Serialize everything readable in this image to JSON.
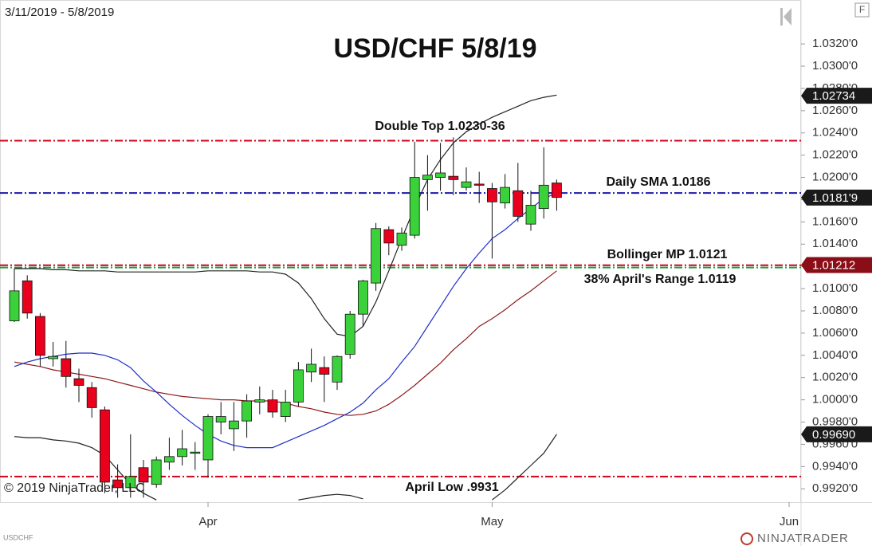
{
  "chart_data": {
    "type": "candlestick",
    "title": "USD/CHF 5/8/19",
    "date_range": "3/11/2019 - 5/8/2019",
    "copyright": "© 2019 NinjaTrader, LLC",
    "instrument": "USDCHF",
    "brand": "NINJATRADER",
    "button": "F",
    "up_color": "#3ad13a",
    "down_color": "#e8001c",
    "ylim": [
      0.9908,
      1.0338
    ],
    "yticks": [
      {
        "value": 0.992,
        "label": "0.9920'0"
      },
      {
        "value": 0.994,
        "label": "0.9940'0"
      },
      {
        "value": 0.996,
        "label": "0.9960'0"
      },
      {
        "value": 0.998,
        "label": "0.9980'0"
      },
      {
        "value": 1.0,
        "label": "1.0000'0"
      },
      {
        "value": 1.002,
        "label": "1.0020'0"
      },
      {
        "value": 1.004,
        "label": "1.0040'0"
      },
      {
        "value": 1.006,
        "label": "1.0060'0"
      },
      {
        "value": 1.008,
        "label": "1.0080'0"
      },
      {
        "value": 1.01,
        "label": "1.0100'0"
      },
      {
        "value": 1.012,
        "label": "1.0120'0"
      },
      {
        "value": 1.014,
        "label": "1.0140'0"
      },
      {
        "value": 1.016,
        "label": "1.0160'0"
      },
      {
        "value": 1.018,
        "label": "1.0180'0"
      },
      {
        "value": 1.02,
        "label": "1.0200'0"
      },
      {
        "value": 1.022,
        "label": "1.0220'0"
      },
      {
        "value": 1.024,
        "label": "1.0240'0"
      },
      {
        "value": 1.026,
        "label": "1.0260'0"
      },
      {
        "value": 1.028,
        "label": "1.0280'0"
      },
      {
        "value": 1.03,
        "label": "1.0300'0"
      },
      {
        "value": 1.032,
        "label": "1.0320'0"
      }
    ],
    "xticks": [
      {
        "value": 15,
        "label": "Apr"
      },
      {
        "value": 37,
        "label": "May"
      },
      {
        "value": 60,
        "label": "Jun"
      }
    ],
    "open": [
      1.0071,
      1.0107,
      1.0075,
      1.0037,
      1.0037,
      1.0019,
      1.0011,
      0.9991,
      0.9928,
      0.9921,
      0.9939,
      0.9924,
      0.9944,
      0.9949,
      0.9952,
      0.9946,
      0.998,
      0.9974,
      0.9981,
      0.9998,
      1.0,
      0.9985,
      0.9998,
      1.0025,
      1.0029,
      1.0016,
      1.0041,
      1.0077,
      1.0105,
      1.0153,
      1.0139,
      1.0148,
      1.0198,
      1.02,
      1.0201,
      1.0191,
      1.0194,
      1.019,
      1.0177,
      1.0188,
      1.0158,
      1.0172,
      1.0195
    ],
    "high": [
      1.0118,
      1.0112,
      1.0078,
      1.0052,
      1.0053,
      1.0028,
      1.0016,
      0.9994,
      0.9942,
      0.9969,
      0.9946,
      0.9949,
      0.9966,
      0.9973,
      0.9962,
      0.9987,
      0.9998,
      0.9998,
      1.0005,
      1.0012,
      1.0009,
      1.0009,
      1.0034,
      1.0046,
      1.0039,
      1.004,
      1.008,
      1.0108,
      1.0159,
      1.0156,
      1.0155,
      1.0232,
      1.022,
      1.0231,
      1.0236,
      1.0209,
      1.0205,
      1.0195,
      1.0203,
      1.0213,
      1.0188,
      1.0227,
      1.0198
    ],
    "low": [
      1.007,
      1.0073,
      1.003,
      1.003,
      1.0011,
      0.9998,
      0.9984,
      0.9916,
      0.9912,
      0.9912,
      0.9912,
      0.9921,
      0.9937,
      0.9941,
      0.9937,
      0.993,
      0.9969,
      0.9954,
      0.9966,
      0.9987,
      0.9984,
      0.998,
      0.9994,
      1.0016,
      0.9998,
      1.0009,
      1.0037,
      1.0066,
      1.0098,
      1.013,
      1.0134,
      1.0145,
      1.017,
      1.0188,
      1.0184,
      1.0188,
      1.0177,
      1.0127,
      1.0172,
      1.016,
      1.0152,
      1.0163,
      1.017
    ],
    "close": [
      1.0098,
      1.0078,
      1.004,
      1.0039,
      1.0021,
      1.0013,
      0.9993,
      0.9926,
      0.9921,
      0.9931,
      0.9926,
      0.9946,
      0.9949,
      0.9956,
      0.9953,
      0.9985,
      0.9985,
      0.9981,
      0.9999,
      1.0,
      0.9989,
      0.9998,
      1.0027,
      1.0032,
      1.0023,
      1.0039,
      1.0077,
      1.0107,
      1.0154,
      1.0141,
      1.015,
      1.02,
      1.0202,
      1.0204,
      1.0198,
      1.0196,
      1.0193,
      1.0178,
      1.0191,
      1.0165,
      1.0175,
      1.0193,
      1.0182
    ],
    "overlays": [
      {
        "color": "#222222",
        "values": [
          1.0118,
          1.0118,
          1.0118,
          1.0117,
          1.0117,
          1.0116,
          1.0116,
          1.0116,
          1.0115,
          1.0115,
          1.0115,
          1.0115,
          1.0115,
          1.0115,
          1.0115,
          1.0116,
          1.0116,
          1.0116,
          1.0116,
          1.0115,
          1.0115,
          1.0113,
          1.0105,
          1.0091,
          1.0073,
          1.0059,
          1.0057,
          1.0066,
          1.0088,
          1.0116,
          1.0145,
          1.0173,
          1.0198,
          1.0216,
          1.0231,
          1.0241,
          1.0248,
          1.0254,
          1.0259,
          1.0264,
          1.0269,
          1.0272,
          1.0274
        ]
      },
      {
        "color": "#8b1a1a",
        "values": [
          1.0034,
          1.0032,
          1.003,
          1.0027,
          1.0025,
          1.0023,
          1.0021,
          1.0019,
          1.0016,
          1.0013,
          1.001,
          1.0007,
          1.0005,
          1.0003,
          1.0002,
          1.0001,
          1.0,
          1.0,
          0.9999,
          0.9999,
          0.9999,
          0.9997,
          0.9994,
          0.9992,
          0.9989,
          0.9987,
          0.9986,
          0.9987,
          0.999,
          0.9996,
          1.0004,
          1.0013,
          1.0023,
          1.0033,
          1.0045,
          1.0055,
          1.0066,
          1.0073,
          1.0081,
          1.009,
          1.0098,
          1.0107,
          1.0116
        ]
      },
      {
        "color": "#1f2fc8",
        "values": [
          1.003,
          1.0034,
          1.0037,
          1.0039,
          1.0041,
          1.0042,
          1.0042,
          1.004,
          1.0036,
          1.0029,
          1.0017,
          1.0007,
          0.9996,
          0.9986,
          0.9977,
          0.9969,
          0.9963,
          0.9959,
          0.9957,
          0.9957,
          0.9957,
          0.9962,
          0.9967,
          0.9972,
          0.9977,
          0.9983,
          0.9989,
          0.9997,
          1.0009,
          1.0019,
          1.0034,
          1.0048,
          1.0066,
          1.0084,
          1.0102,
          1.0118,
          1.0132,
          1.0145,
          1.0153,
          1.0163,
          1.0172,
          1.0181,
          1.0186
        ]
      },
      {
        "color": "#222222",
        "values": [
          0.9967,
          0.9966,
          0.9966,
          0.9964,
          0.9963,
          0.9961,
          0.9957,
          0.995,
          0.9937,
          0.9924,
          0.9916,
          0.991,
          null,
          null,
          null,
          null,
          null,
          null,
          null,
          null,
          null,
          null,
          0.991,
          0.9912,
          0.9914,
          0.9915,
          0.9914,
          0.9911,
          null,
          null,
          null,
          null,
          null,
          null,
          null,
          null,
          null,
          0.991,
          0.9919,
          0.993,
          0.9941,
          0.9952,
          0.9969
        ]
      }
    ],
    "hlines": [
      {
        "value": 1.0233,
        "color": "#d0021b",
        "label": "Double Top 1.0230-36"
      },
      {
        "value": 1.0186,
        "color": "#1a1aa8",
        "label": "Daily SMA 1.0186"
      },
      {
        "value": 1.0121,
        "color": "#d0021b",
        "label": "Bollinger MP 1.0121"
      },
      {
        "value": 1.0119,
        "color": "#1e9a3a",
        "label": "38% April's Range 1.0119"
      },
      {
        "value": 0.9931,
        "color": "#d0021b",
        "label": "April Low .9931"
      }
    ],
    "price_markers": [
      {
        "value": 1.02734,
        "label": "1.02734",
        "color": "#1a1a1a"
      },
      {
        "value": 1.01819,
        "label": "1.0181'9",
        "color": "#1a1a1a"
      },
      {
        "value": 1.01212,
        "label": "1.01212",
        "color": "#8b0d17"
      },
      {
        "value": 0.9969,
        "label": "0.99690",
        "color": "#1a1a1a"
      }
    ]
  }
}
